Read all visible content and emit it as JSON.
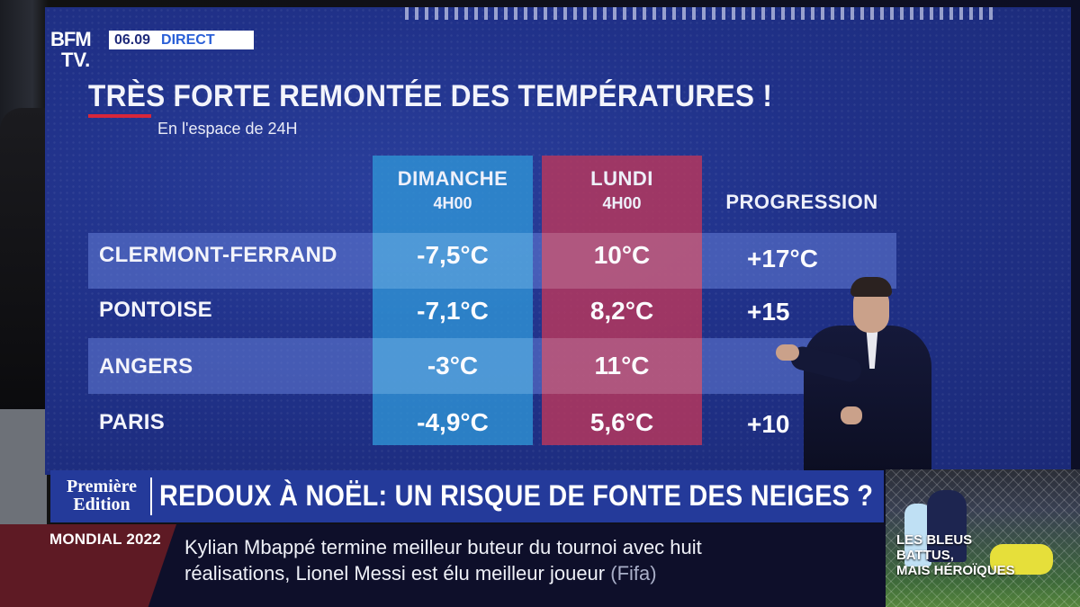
{
  "channel": {
    "logo_line1": "BFM",
    "logo_line2": "TV.",
    "time": "06.09",
    "live": "DIRECT"
  },
  "screen": {
    "headline": "TRÈS FORTE REMONTÉE DES TEMPÉRATURES !",
    "subtitle": "En l'espace de 24H",
    "columns": [
      {
        "line1": "DIMANCHE",
        "line2": "4H00"
      },
      {
        "line1": "LUNDI",
        "line2": "4H00"
      },
      {
        "line1": "PROGRESSION",
        "line2": ""
      }
    ],
    "rows": [
      {
        "city": "CLERMONT-FERRAND",
        "dimanche": "-7,5°C",
        "lundi": "10°C",
        "progression": "+17°C"
      },
      {
        "city": "PONTOISE",
        "dimanche": "-7,1°C",
        "lundi": "8,2°C",
        "progression": "+15"
      },
      {
        "city": "ANGERS",
        "dimanche": "-3°C",
        "lundi": "11°C",
        "progression": ""
      },
      {
        "city": "PARIS",
        "dimanche": "-4,9°C",
        "lundi": "5,6°C",
        "progression": "+10"
      }
    ]
  },
  "lower_third": {
    "edition_line1": "Première",
    "edition_line2": "Edition",
    "title": "REDOUX À NOËL: UN RISQUE DE FONTE DES NEIGES ?"
  },
  "ticker": {
    "label": "MONDIAL 2022",
    "line1": "Kylian Mbappé termine meilleur buteur du tournoi avec huit",
    "line2": "réalisations, Lionel Messi est élu meilleur joueur",
    "source": "(Fifa)"
  },
  "thumbnail": {
    "line1": "LES BLEUS",
    "line2": "BATTUS,",
    "line3": "MAIS HÉROÏQUES"
  },
  "colors": {
    "screen_blue": "#203189",
    "dimanche_col": "#3096d7",
    "lundi_col": "#b9375c",
    "headline_red": "#d8263a",
    "ticker_label": "#5e1a24"
  }
}
